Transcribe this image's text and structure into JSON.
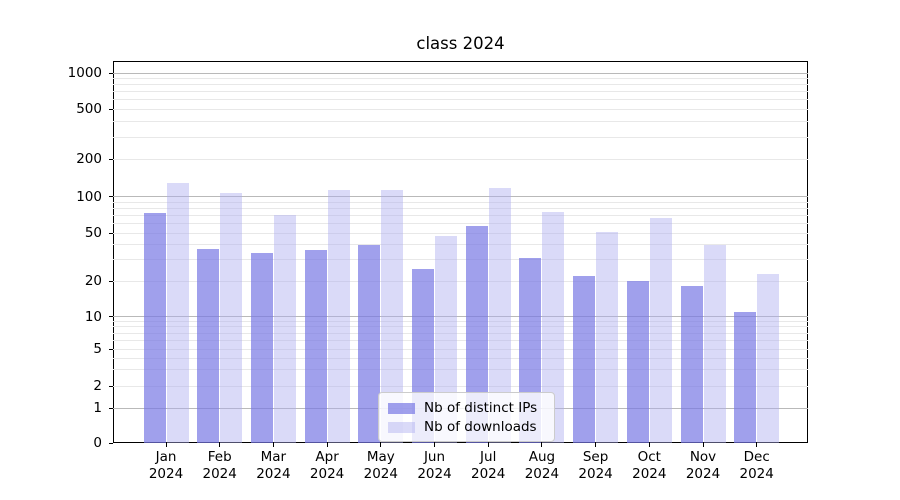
{
  "title": "class 2024",
  "legend": {
    "items": [
      {
        "label": "Nb of distinct IPs",
        "color": "rgba(120,120,228,0.70)"
      },
      {
        "label": "Nb of downloads",
        "color": "rgba(173,173,240,0.45)"
      }
    ]
  },
  "colors": {
    "bar_distinct_ips": "rgba(120,120,228,0.70)",
    "bar_downloads": "rgba(173,173,240,0.45)",
    "grid_major": "#b9b9b9",
    "grid_minor": "#e8e8e8",
    "axis": "#000000"
  },
  "chart_data": {
    "type": "bar",
    "title": "class 2024",
    "categories": [
      "Jan 2024",
      "Feb 2024",
      "Mar 2024",
      "Apr 2024",
      "May 2024",
      "Jun 2024",
      "Jul 2024",
      "Aug 2024",
      "Sep 2024",
      "Oct 2024",
      "Nov 2024",
      "Dec 2024"
    ],
    "series": [
      {
        "name": "Nb of distinct IPs",
        "values": [
          73,
          37,
          34,
          36,
          40,
          25,
          57,
          31,
          22,
          20,
          18,
          11
        ]
      },
      {
        "name": "Nb of downloads",
        "values": [
          128,
          108,
          71,
          113,
          113,
          47,
          117,
          74,
          51,
          66,
          40,
          23
        ]
      }
    ],
    "xlabel": "",
    "ylabel": "",
    "yscale": "symlog",
    "ylim": [
      0,
      1000
    ],
    "yticks": [
      0,
      1,
      2,
      5,
      10,
      20,
      50,
      100,
      200,
      500,
      1000
    ],
    "grid": true,
    "legend_position": "lower center"
  }
}
